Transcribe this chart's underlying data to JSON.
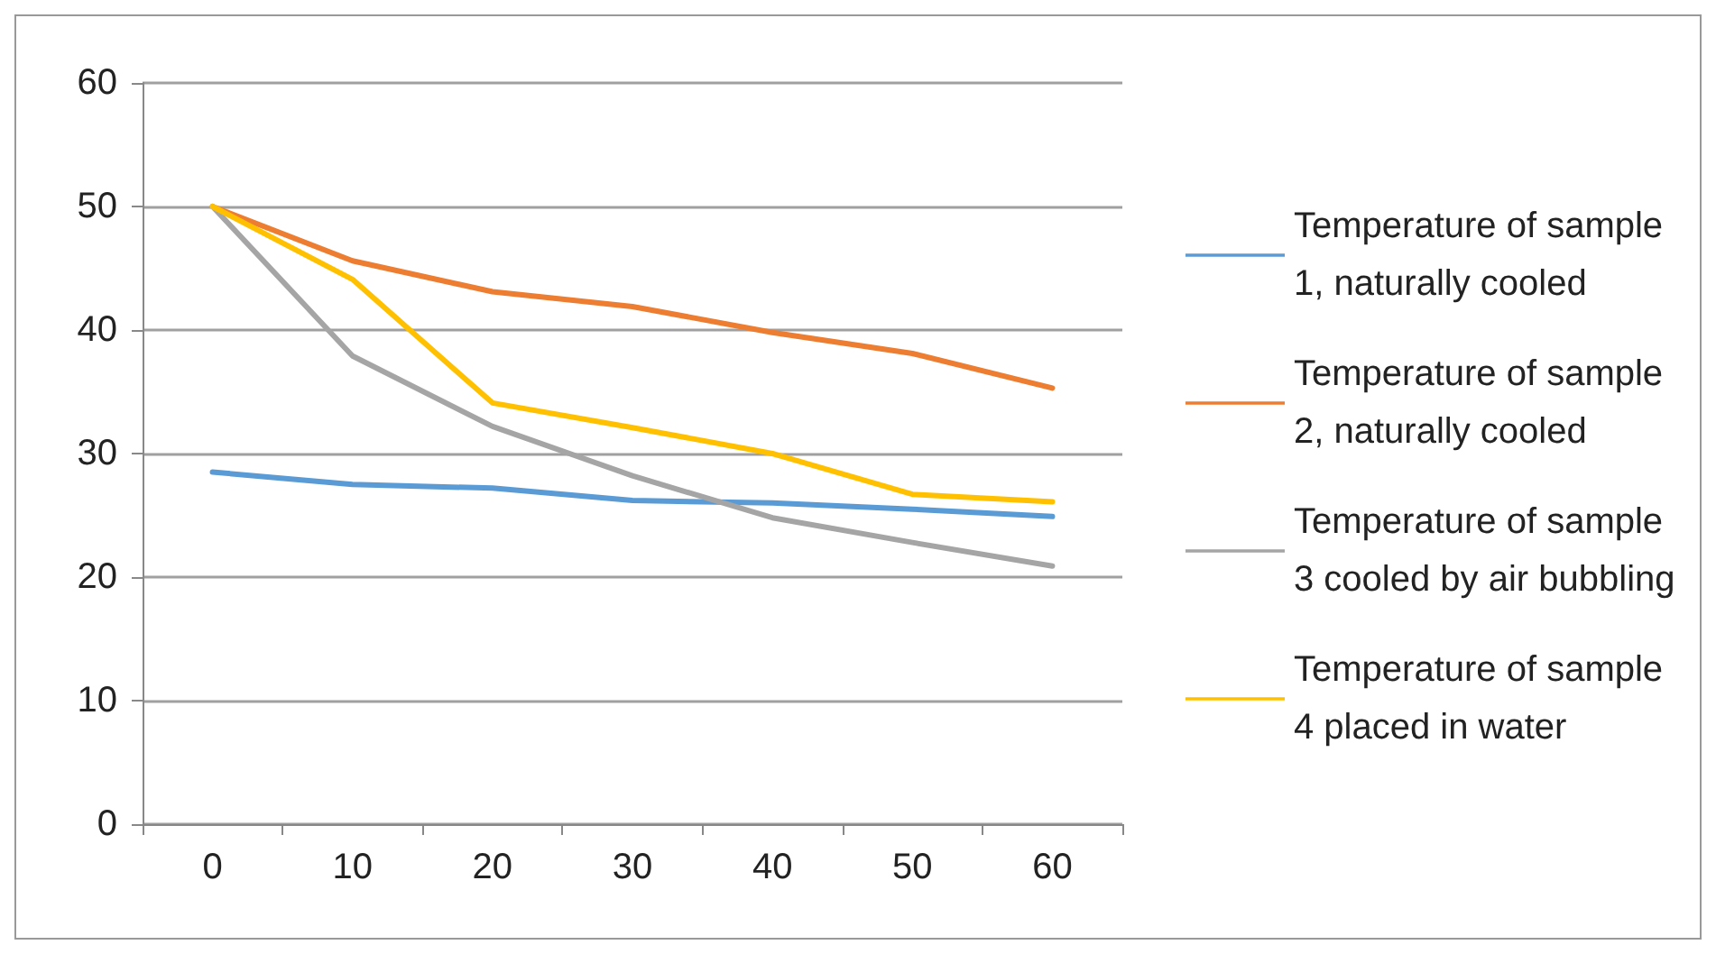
{
  "chart_data": {
    "type": "line",
    "categories": [
      "0",
      "10",
      "20",
      "30",
      "40",
      "50",
      "60"
    ],
    "series": [
      {
        "name": "Temperature of sample 1, naturally cooled",
        "color": "#5b9bd5",
        "values": [
          28.5,
          27.5,
          27.2,
          26.2,
          26.0,
          25.5,
          24.9
        ]
      },
      {
        "name": "Temperature of sample 2, naturally cooled",
        "color": "#ed7d31",
        "values": [
          50,
          45.6,
          43.1,
          41.9,
          39.8,
          38.1,
          35.3
        ]
      },
      {
        "name": "Temperature of sample 3 cooled by air bubbling",
        "color": "#a5a5a5",
        "values": [
          50,
          37.9,
          32.2,
          28.2,
          24.8,
          22.8,
          20.9
        ]
      },
      {
        "name": "Temperature of sample 4 placed in water",
        "color": "#ffc000",
        "values": [
          50,
          44.1,
          34.1,
          32.1,
          30,
          26.7,
          26.1
        ]
      }
    ],
    "ylim": [
      0,
      60
    ],
    "yticks": [
      0,
      10,
      20,
      30,
      40,
      50,
      60
    ],
    "grid": "y",
    "legend": "right",
    "marker": "none",
    "line_style": "solid"
  }
}
